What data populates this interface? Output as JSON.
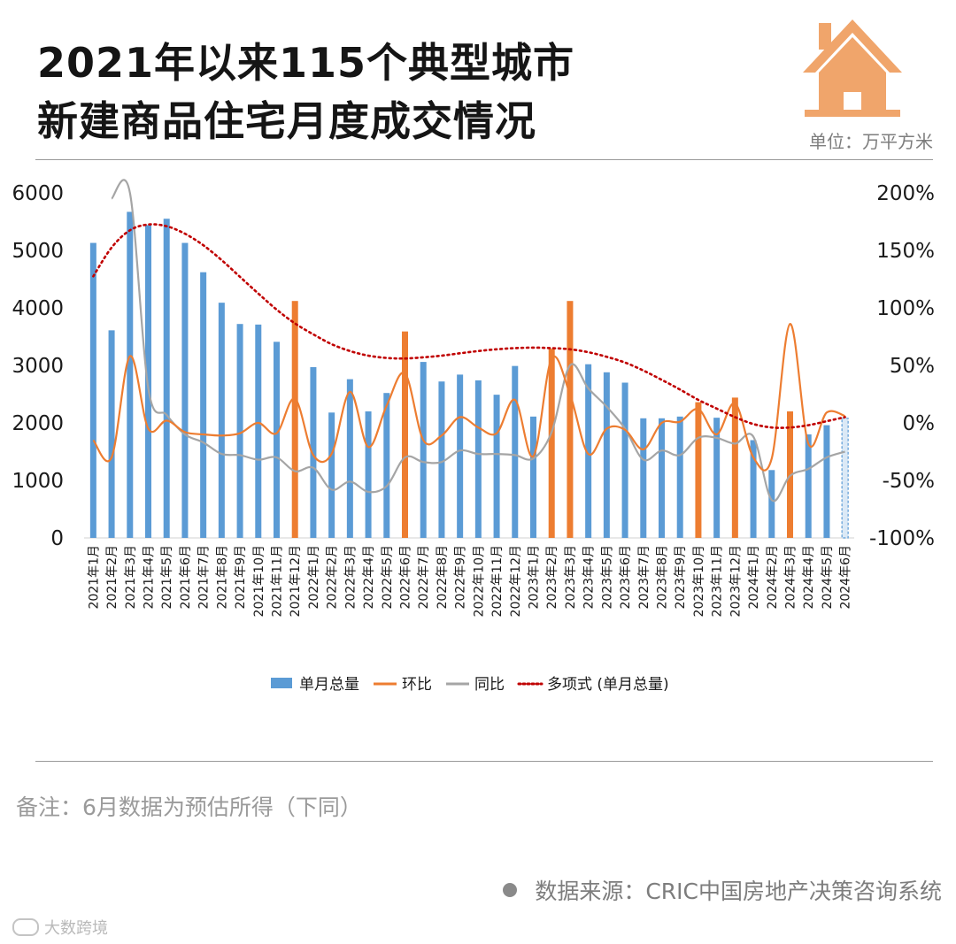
{
  "title": {
    "line1": "2021年以来115个典型城市",
    "line2": "新建商品住宅月度成交情况"
  },
  "unit_label": "单位：万平方米",
  "icon": "house-icon",
  "colors": {
    "bar": "#5b9bd5",
    "bar_highlight": "#ed7d31",
    "mom_line": "#ed7d31",
    "yoy_line": "#a5a5a5",
    "trend": "#c00000"
  },
  "note": "备注：6月数据为预估所得（下同）",
  "source": "数据来源：CRIC中国房地产决策咨询系统",
  "watermark": "大数跨境",
  "chart_data": {
    "type": "bar",
    "title": "2021年以来115个典型城市新建商品住宅月度成交情况",
    "categories": [
      "2021年1月",
      "2021年2月",
      "2021年3月",
      "2021年4月",
      "2021年5月",
      "2021年6月",
      "2021年7月",
      "2021年8月",
      "2021年9月",
      "2021年10月",
      "2021年11月",
      "2021年12月",
      "2022年1月",
      "2022年2月",
      "2022年3月",
      "2022年4月",
      "2022年5月",
      "2022年6月",
      "2022年7月",
      "2022年8月",
      "2022年9月",
      "2022年10月",
      "2022年11月",
      "2022年12月",
      "2023年1月",
      "2023年2月",
      "2023年3月",
      "2023年4月",
      "2023年5月",
      "2023年6月",
      "2023年7月",
      "2023年8月",
      "2023年9月",
      "2023年10月",
      "2023年11月",
      "2023年12月",
      "2024年1月",
      "2024年2月",
      "2024年3月",
      "2024年4月",
      "2024年5月",
      "2024年6月"
    ],
    "series": [
      {
        "name": "单月总量",
        "axis": "left",
        "values": [
          5130,
          3610,
          5670,
          5440,
          5550,
          5130,
          4620,
          4090,
          3720,
          3710,
          3410,
          4120,
          2970,
          2180,
          2760,
          2200,
          2520,
          3590,
          3060,
          2720,
          2840,
          2740,
          2490,
          2990,
          2110,
          3290,
          4120,
          3020,
          2880,
          2700,
          2080,
          2080,
          2110,
          2360,
          2090,
          2440,
          1700,
          1180,
          2200,
          1800,
          1960,
          2080
        ],
        "highlight_months": [
          "2021年12月",
          "2022年6月",
          "2023年2月",
          "2023年3月",
          "2023年10月",
          "2023年12月",
          "2024年3月"
        ],
        "estimated_months": [
          "2024年6月"
        ]
      },
      {
        "name": "环比",
        "axis": "right",
        "unit": "%",
        "values": [
          -15,
          -30,
          58,
          -5,
          2,
          -8,
          -10,
          -11,
          -9,
          0,
          -9,
          21,
          -28,
          -27,
          27,
          -21,
          15,
          43,
          -15,
          -11,
          5,
          -4,
          -9,
          20,
          -29,
          56,
          25,
          -27,
          -5,
          -6,
          -23,
          0,
          1,
          12,
          -10,
          17,
          -30,
          -31,
          86,
          -18,
          9,
          6
        ]
      },
      {
        "name": "同比",
        "axis": "right",
        "unit": "%",
        "values": [
          null,
          195,
          200,
          30,
          7,
          -10,
          -17,
          -27,
          -28,
          -32,
          -30,
          -42,
          -39,
          -58,
          -51,
          -60,
          -55,
          -30,
          -34,
          -34,
          -24,
          -27,
          -27,
          -28,
          -31,
          -8,
          50,
          30,
          14,
          -5,
          -32,
          -24,
          -28,
          -13,
          -13,
          -18,
          -12,
          -67,
          -46,
          -40,
          -30,
          -25
        ]
      },
      {
        "name": "多项式 (单月总量)",
        "type": "trendline",
        "axis": "left",
        "values": [
          4550,
          5050,
          5350,
          5450,
          5420,
          5290,
          5090,
          4830,
          4540,
          4250,
          3970,
          3730,
          3540,
          3370,
          3250,
          3170,
          3130,
          3120,
          3140,
          3170,
          3210,
          3250,
          3280,
          3300,
          3310,
          3300,
          3280,
          3230,
          3150,
          3050,
          2910,
          2750,
          2580,
          2400,
          2250,
          2100,
          1980,
          1920,
          1920,
          1960,
          2030,
          2100
        ]
      }
    ],
    "y_left": {
      "ticks": [
        "0",
        "1000",
        "2000",
        "3000",
        "4000",
        "5000",
        "6000"
      ],
      "ylim": [
        0,
        6000
      ]
    },
    "y_right": {
      "ticks": [
        "-100%",
        "-50%",
        "0%",
        "50%",
        "100%",
        "150%",
        "200%"
      ],
      "ylim": [
        -100,
        200
      ]
    },
    "xlabel": "",
    "ylabel": "",
    "grid": false,
    "legend": {
      "position": "bottom",
      "entries": [
        "单月总量",
        "环比",
        "同比",
        "多项式 (单月总量)"
      ]
    }
  }
}
